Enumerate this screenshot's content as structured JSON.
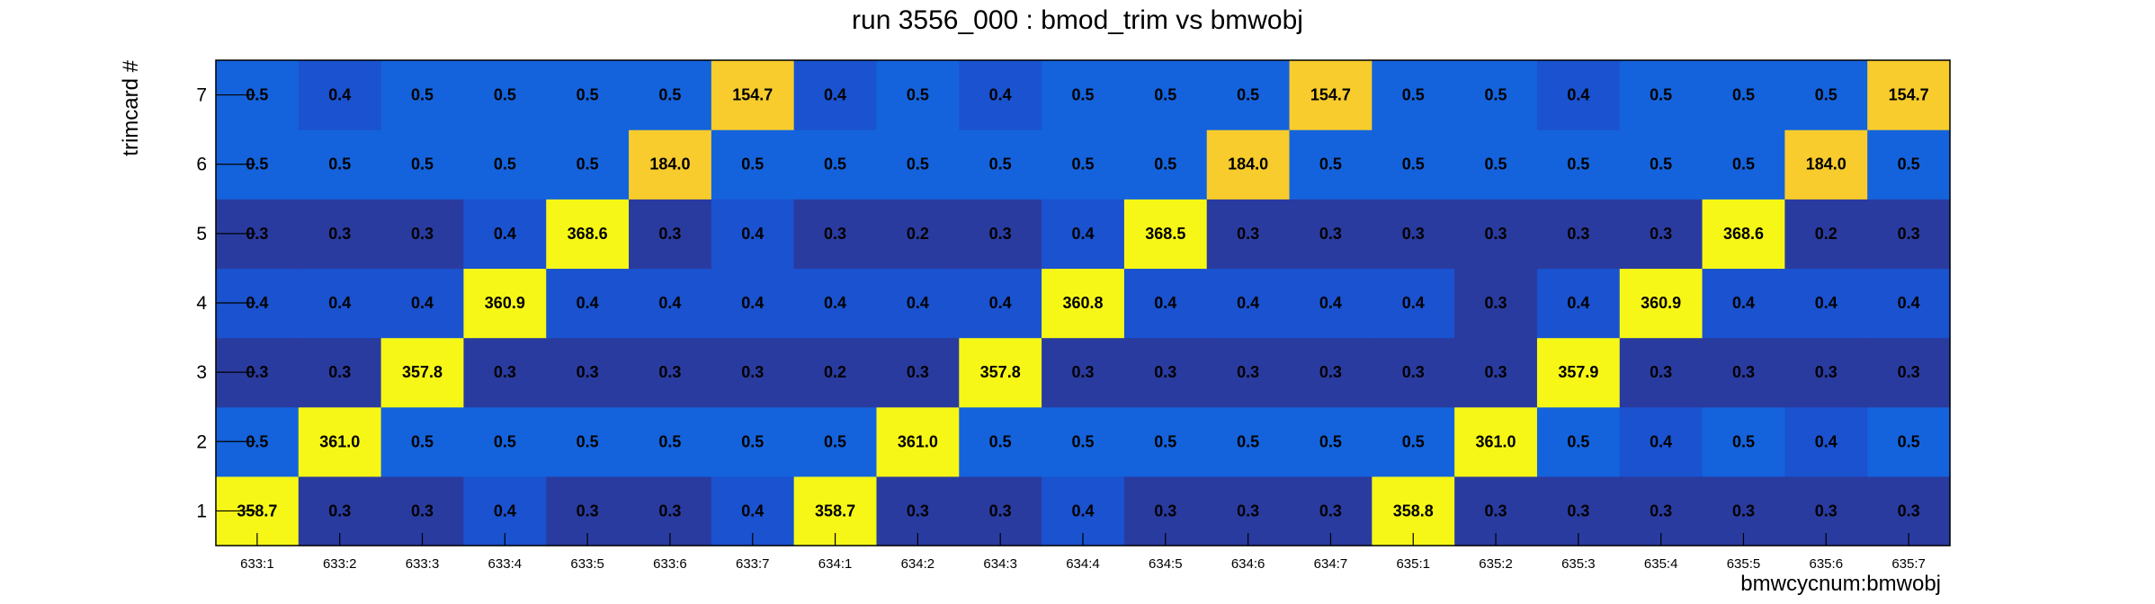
{
  "chart_data": {
    "type": "heatmap",
    "title": "run 3556_000 : bmod_trim vs bmwobj",
    "xlabel": "bmwcycnum:bmwobj",
    "ylabel": "trimcard #",
    "x_categories": [
      "633:1",
      "633:2",
      "633:3",
      "633:4",
      "633:5",
      "633:6",
      "633:7",
      "634:1",
      "634:2",
      "634:3",
      "634:4",
      "634:5",
      "634:6",
      "634:7",
      "635:1",
      "635:2",
      "635:3",
      "635:4",
      "635:5",
      "635:6",
      "635:7"
    ],
    "y_categories": [
      "1",
      "2",
      "3",
      "4",
      "5",
      "6",
      "7"
    ],
    "values": [
      [
        358.7,
        0.3,
        0.3,
        0.4,
        0.3,
        0.3,
        0.4,
        358.7,
        0.3,
        0.3,
        0.4,
        0.3,
        0.3,
        0.3,
        358.8,
        0.3,
        0.3,
        0.3,
        0.3,
        0.3,
        0.3
      ],
      [
        0.5,
        361.0,
        0.5,
        0.5,
        0.5,
        0.5,
        0.5,
        0.5,
        361.0,
        0.5,
        0.5,
        0.5,
        0.5,
        0.5,
        0.5,
        361.0,
        0.5,
        0.4,
        0.5,
        0.4,
        0.5
      ],
      [
        0.3,
        0.3,
        357.8,
        0.3,
        0.3,
        0.3,
        0.3,
        0.2,
        0.3,
        357.8,
        0.3,
        0.3,
        0.3,
        0.3,
        0.3,
        0.3,
        357.9,
        0.3,
        0.3,
        0.3,
        0.3
      ],
      [
        0.4,
        0.4,
        0.4,
        360.9,
        0.4,
        0.4,
        0.4,
        0.4,
        0.4,
        0.4,
        360.8,
        0.4,
        0.4,
        0.4,
        0.4,
        0.3,
        0.4,
        360.9,
        0.4,
        0.4,
        0.4
      ],
      [
        0.3,
        0.3,
        0.3,
        0.4,
        368.6,
        0.3,
        0.4,
        0.3,
        0.2,
        0.3,
        0.4,
        368.5,
        0.3,
        0.3,
        0.3,
        0.3,
        0.3,
        0.3,
        368.6,
        0.2,
        0.3
      ],
      [
        0.5,
        0.5,
        0.5,
        0.5,
        0.5,
        184.0,
        0.5,
        0.5,
        0.5,
        0.5,
        0.5,
        0.5,
        184.0,
        0.5,
        0.5,
        0.5,
        0.5,
        0.5,
        0.5,
        184.0,
        0.5
      ],
      [
        0.5,
        0.4,
        0.5,
        0.5,
        0.5,
        0.5,
        154.7,
        0.4,
        0.5,
        0.4,
        0.5,
        0.5,
        0.5,
        154.7,
        0.5,
        0.5,
        0.4,
        0.5,
        0.5,
        0.5,
        154.7
      ]
    ],
    "colors": {
      "low_shade_1": "#2a3b9f",
      "low_shade_2": "#1a48c0",
      "low_shade_3": "#1a52cf",
      "low_shade_4": "#1463dc",
      "mid_value": "#f7cc2c",
      "high_value": "#f7f717"
    },
    "grid": false,
    "legend": "none"
  }
}
